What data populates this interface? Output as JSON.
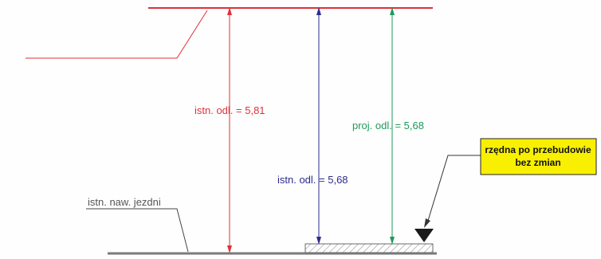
{
  "labels": {
    "existing_clearance": "istn. odl. = 5,81",
    "existing_clearance_after": "istn. odl. = 5,68",
    "designed_clearance": "proj. odl. = 5,68",
    "road_surface": "istn. naw. jezdni",
    "note_line1": "rzędna po przebudowie",
    "note_line2": "bez zmian"
  },
  "colors": {
    "overhead_line": "#e0303a",
    "existing_dim": "#e0303a",
    "existing_after_dim": "#2c2c8c",
    "designed_dim": "#1e9a5a",
    "road": "#7a7a7a",
    "note_fill": "#f8f000",
    "leader": "#333333"
  },
  "icons": {
    "elevation_marker": "triangle-down-icon"
  }
}
